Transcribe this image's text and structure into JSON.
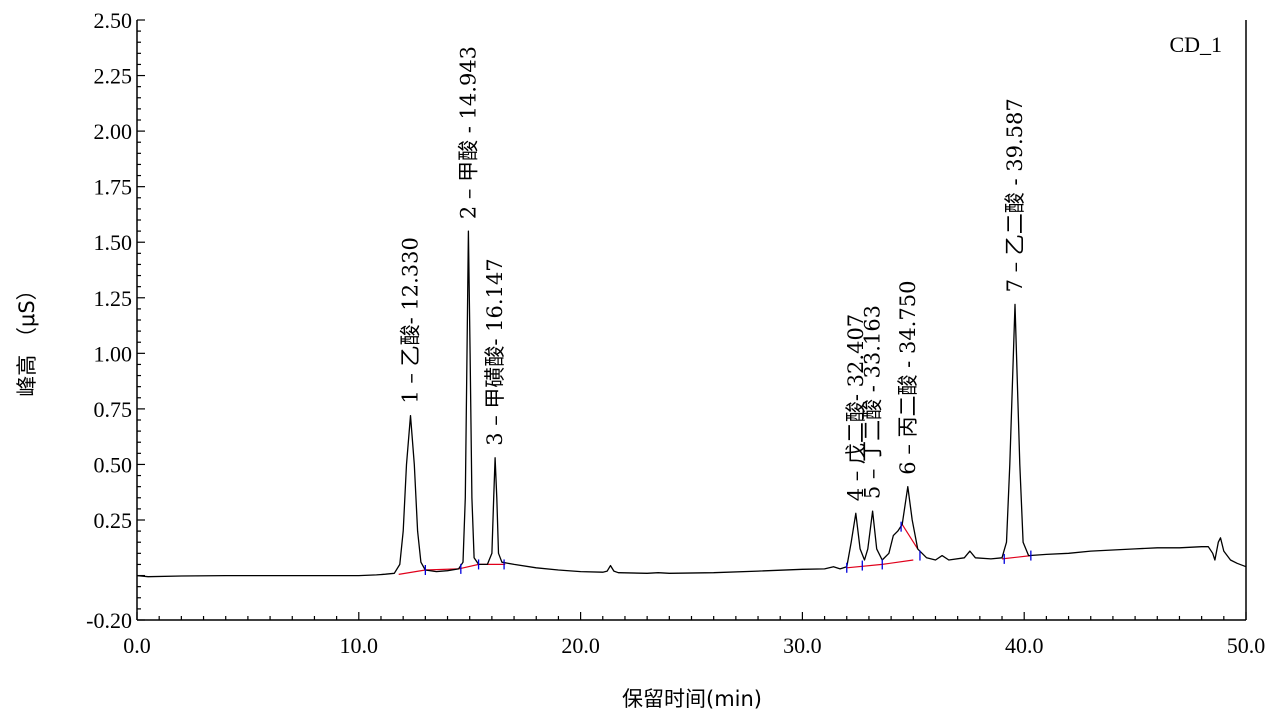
{
  "chart_data": {
    "type": "line",
    "title": "",
    "channel_label": "CD_1",
    "xlabel": "保留时间(min)",
    "ylabel": "峰高 （μS）",
    "xlim": [
      0,
      50
    ],
    "ylim": [
      -0.2,
      2.5
    ],
    "x_ticks": [
      {
        "value": 0,
        "label": "0.0"
      },
      {
        "value": 10,
        "label": "10.0"
      },
      {
        "value": 20,
        "label": "20.0"
      },
      {
        "value": 30,
        "label": "30.0"
      },
      {
        "value": 40,
        "label": "40.0"
      },
      {
        "value": 50,
        "label": "50.0"
      }
    ],
    "y_ticks": [
      {
        "value": -0.2,
        "label": "-0.20"
      },
      {
        "value": 0.25,
        "label": "0.25"
      },
      {
        "value": 0.5,
        "label": "0.50"
      },
      {
        "value": 0.75,
        "label": "0.75"
      },
      {
        "value": 1.0,
        "label": "1.00"
      },
      {
        "value": 1.25,
        "label": "1.25"
      },
      {
        "value": 1.5,
        "label": "1.50"
      },
      {
        "value": 1.75,
        "label": "1.75"
      },
      {
        "value": 2.0,
        "label": "2.00"
      },
      {
        "value": 2.25,
        "label": "2.25"
      },
      {
        "value": 2.5,
        "label": "2.50"
      }
    ],
    "grid": false,
    "peaks": [
      {
        "number": 1,
        "name": "乙酸",
        "retention_time": 12.33,
        "height": 0.72,
        "label": "1 –  乙酸- 12.330"
      },
      {
        "number": 2,
        "name": "甲酸",
        "retention_time": 14.943,
        "height": 1.55,
        "label": "2 –  甲酸  - 14.943"
      },
      {
        "number": 3,
        "name": "甲磺酸",
        "retention_time": 16.147,
        "height": 0.53,
        "label": "3 –  甲磺酸- 16.147"
      },
      {
        "number": 4,
        "name": "戊二酸",
        "retention_time": 32.407,
        "height": 0.28,
        "label": "4 –  戊二酸- 32.407"
      },
      {
        "number": 5,
        "name": "丁二酸",
        "retention_time": 33.163,
        "height": 0.29,
        "label": "5 –  丁二酸  - 33.163"
      },
      {
        "number": 6,
        "name": "丙二酸",
        "retention_time": 34.75,
        "height": 0.4,
        "label": "6 –  丙二酸  - 34.750"
      },
      {
        "number": 7,
        "name": "乙二酸",
        "retention_time": 39.587,
        "height": 1.22,
        "label": "7 –  乙二酸  - 39.587"
      }
    ],
    "series": [
      {
        "color": "#000000",
        "points": [
          [
            0.0,
            0.0
          ],
          [
            0.5,
            -0.005
          ],
          [
            2.0,
            -0.002
          ],
          [
            4.0,
            0.0
          ],
          [
            6.0,
            0.0
          ],
          [
            8.0,
            0.0
          ],
          [
            10.0,
            0.0
          ],
          [
            10.8,
            0.003
          ],
          [
            11.2,
            0.006
          ],
          [
            11.6,
            0.01
          ],
          [
            11.85,
            0.05
          ],
          [
            12.0,
            0.2
          ],
          [
            12.15,
            0.5
          ],
          [
            12.33,
            0.72
          ],
          [
            12.5,
            0.5
          ],
          [
            12.65,
            0.2
          ],
          [
            12.8,
            0.06
          ],
          [
            13.0,
            0.025
          ],
          [
            13.5,
            0.018
          ],
          [
            14.0,
            0.022
          ],
          [
            14.5,
            0.03
          ],
          [
            14.7,
            0.06
          ],
          [
            14.8,
            0.35
          ],
          [
            14.88,
            1.0
          ],
          [
            14.943,
            1.55
          ],
          [
            15.02,
            1.0
          ],
          [
            15.1,
            0.35
          ],
          [
            15.2,
            0.08
          ],
          [
            15.4,
            0.05
          ],
          [
            15.8,
            0.05
          ],
          [
            16.0,
            0.1
          ],
          [
            16.08,
            0.35
          ],
          [
            16.147,
            0.53
          ],
          [
            16.22,
            0.35
          ],
          [
            16.3,
            0.1
          ],
          [
            16.45,
            0.06
          ],
          [
            17.0,
            0.05
          ],
          [
            18.0,
            0.035
          ],
          [
            19.0,
            0.025
          ],
          [
            20.0,
            0.018
          ],
          [
            21.0,
            0.015
          ],
          [
            21.2,
            0.02
          ],
          [
            21.35,
            0.045
          ],
          [
            21.5,
            0.02
          ],
          [
            21.7,
            0.013
          ],
          [
            23.0,
            0.01
          ],
          [
            23.5,
            0.013
          ],
          [
            24.0,
            0.01
          ],
          [
            26.0,
            0.013
          ],
          [
            28.0,
            0.02
          ],
          [
            30.0,
            0.028
          ],
          [
            31.0,
            0.03
          ],
          [
            31.4,
            0.04
          ],
          [
            31.7,
            0.03
          ],
          [
            32.0,
            0.04
          ],
          [
            32.2,
            0.15
          ],
          [
            32.407,
            0.28
          ],
          [
            32.6,
            0.12
          ],
          [
            32.8,
            0.07
          ],
          [
            32.95,
            0.12
          ],
          [
            33.163,
            0.29
          ],
          [
            33.35,
            0.12
          ],
          [
            33.6,
            0.07
          ],
          [
            33.9,
            0.1
          ],
          [
            34.1,
            0.18
          ],
          [
            34.3,
            0.2
          ],
          [
            34.5,
            0.23
          ],
          [
            34.75,
            0.4
          ],
          [
            34.95,
            0.25
          ],
          [
            35.2,
            0.12
          ],
          [
            35.6,
            0.08
          ],
          [
            36.0,
            0.07
          ],
          [
            36.3,
            0.09
          ],
          [
            36.6,
            0.07
          ],
          [
            37.3,
            0.08
          ],
          [
            37.55,
            0.11
          ],
          [
            37.8,
            0.08
          ],
          [
            38.5,
            0.075
          ],
          [
            39.0,
            0.08
          ],
          [
            39.2,
            0.15
          ],
          [
            39.35,
            0.5
          ],
          [
            39.587,
            1.22
          ],
          [
            39.8,
            0.5
          ],
          [
            39.95,
            0.15
          ],
          [
            40.2,
            0.09
          ],
          [
            41.0,
            0.095
          ],
          [
            42.0,
            0.1
          ],
          [
            43.0,
            0.11
          ],
          [
            44.0,
            0.115
          ],
          [
            45.0,
            0.12
          ],
          [
            46.0,
            0.125
          ],
          [
            47.0,
            0.125
          ],
          [
            48.0,
            0.13
          ],
          [
            48.3,
            0.13
          ],
          [
            48.5,
            0.1
          ],
          [
            48.6,
            0.07
          ],
          [
            48.75,
            0.15
          ],
          [
            48.85,
            0.17
          ],
          [
            49.0,
            0.11
          ],
          [
            49.3,
            0.07
          ],
          [
            49.6,
            0.055
          ],
          [
            50.0,
            0.04
          ]
        ]
      }
    ],
    "baselines": [
      {
        "color": "#e0001b",
        "points": [
          [
            11.8,
            0.005
          ],
          [
            13.0,
            0.025
          ],
          [
            14.5,
            0.03
          ],
          [
            15.4,
            0.05
          ],
          [
            16.6,
            0.05
          ]
        ]
      },
      {
        "color": "#e0001b",
        "points": [
          [
            32.0,
            0.035
          ],
          [
            33.6,
            0.05
          ],
          [
            35.0,
            0.07
          ]
        ]
      },
      {
        "color": "#e0001b",
        "points": [
          [
            34.5,
            0.23
          ],
          [
            35.2,
            0.12
          ]
        ]
      },
      {
        "color": "#e0001b",
        "points": [
          [
            39.0,
            0.075
          ],
          [
            40.3,
            0.09
          ]
        ]
      }
    ],
    "integration_markers": [
      {
        "x": 13.0,
        "y": 0.025,
        "color": "#0000dd"
      },
      {
        "x": 14.6,
        "y": 0.03,
        "color": "#0000dd"
      },
      {
        "x": 15.4,
        "y": 0.05,
        "color": "#0000dd"
      },
      {
        "x": 16.55,
        "y": 0.05,
        "color": "#0000dd"
      },
      {
        "x": 32.0,
        "y": 0.035,
        "color": "#0000dd"
      },
      {
        "x": 32.7,
        "y": 0.045,
        "color": "#0000dd"
      },
      {
        "x": 33.6,
        "y": 0.05,
        "color": "#0000dd"
      },
      {
        "x": 34.45,
        "y": 0.22,
        "color": "#0000dd"
      },
      {
        "x": 35.3,
        "y": 0.09,
        "color": "#0000dd"
      },
      {
        "x": 39.1,
        "y": 0.075,
        "color": "#0000dd"
      },
      {
        "x": 40.3,
        "y": 0.09,
        "color": "#0000dd"
      }
    ]
  }
}
